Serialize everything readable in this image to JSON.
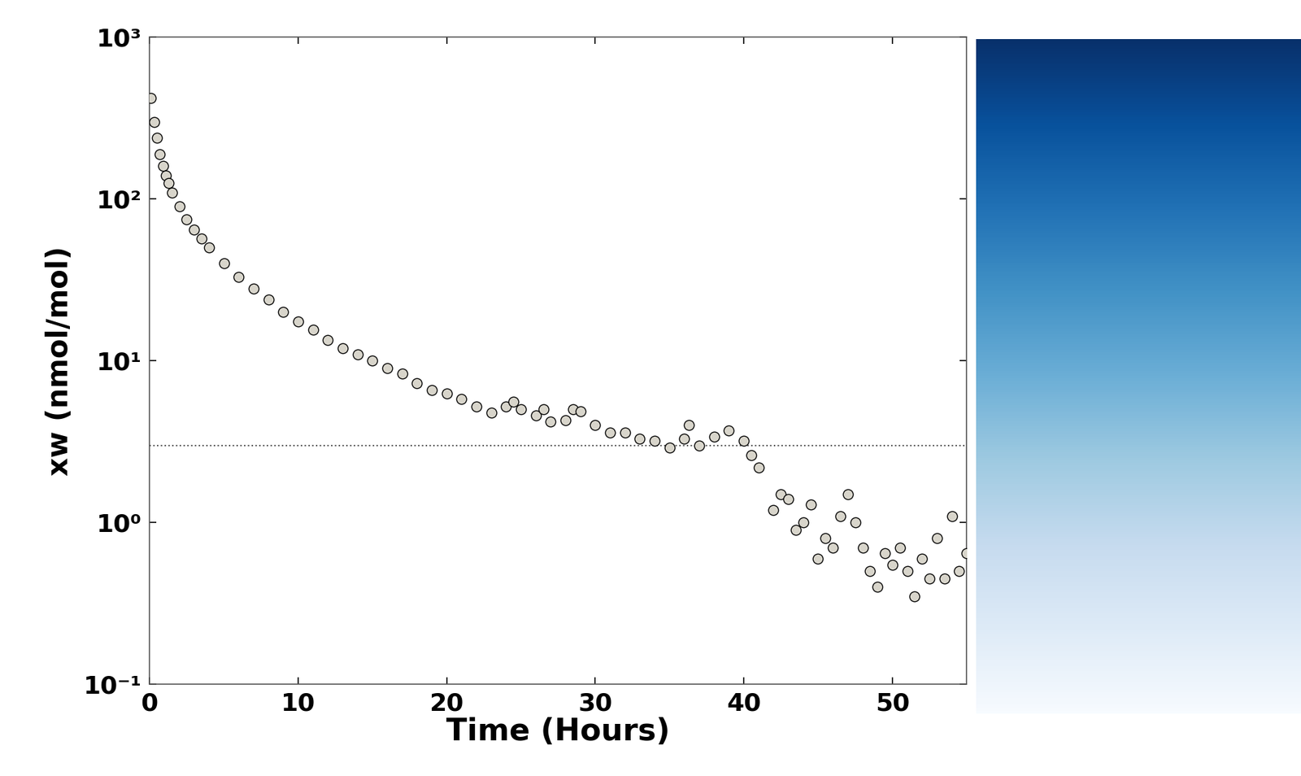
{
  "chart_data": {
    "type": "scatter",
    "x_label": "Time (Hours)",
    "y_label": "xw (nmol/mol)",
    "log": "y",
    "color": "#d8d5cb",
    "marker": "o",
    "threshold": 3,
    "x": [
      0.1,
      0.3,
      0.5,
      0.7,
      0.9,
      1.1,
      1.3,
      1.5,
      2,
      2.5,
      3,
      3.5,
      4,
      5,
      6,
      7,
      8,
      9,
      10,
      11,
      12,
      13,
      14,
      15,
      16,
      17,
      18,
      19,
      20,
      21,
      22,
      23,
      24,
      24.5,
      25,
      26,
      26.5,
      27,
      28,
      28.5,
      29,
      30,
      31,
      32,
      33,
      34,
      35,
      36,
      36.3,
      37,
      38,
      39,
      40,
      40.5,
      41,
      42,
      42.5,
      43,
      43.5,
      44,
      44.5,
      45,
      45.5,
      46,
      46.5,
      47,
      47.5,
      48,
      48.5,
      49,
      49.5,
      50,
      50.5,
      51,
      51.5,
      52,
      52.5,
      53,
      53.5,
      54,
      54.5,
      55
    ],
    "values": [
      420,
      300,
      240,
      190,
      160,
      140,
      125,
      110,
      90,
      75,
      65,
      57,
      50,
      40,
      33,
      28,
      24,
      20,
      17.5,
      15.5,
      13.5,
      12,
      11,
      10,
      9,
      8.3,
      7.3,
      6.6,
      6.3,
      5.8,
      5.2,
      4.8,
      5.2,
      5.6,
      5,
      4.6,
      5,
      4.2,
      4.3,
      5,
      4.9,
      4,
      3.6,
      3.6,
      3.3,
      3.2,
      2.9,
      3.3,
      4,
      3,
      3.4,
      3.7,
      3.2,
      2.6,
      2.2,
      1.2,
      1.5,
      1.4,
      0.9,
      1.0,
      1.3,
      0.6,
      0.8,
      0.7,
      1.1,
      1.5,
      1.0,
      0.7,
      0.5,
      0.4,
      0.65,
      0.55,
      0.7,
      0.5,
      0.35,
      0.6,
      0.45,
      0.8,
      0.45,
      1.1,
      0.5,
      0.65
    ],
    "xlim": [
      0,
      55
    ],
    "xticks": [
      0,
      10,
      20,
      30,
      40,
      50
    ],
    "ylim": [
      0.1,
      1000
    ],
    "yticks": [
      {
        "value": 0.1,
        "label": "10⁻¹"
      },
      {
        "value": 1,
        "label": "10⁰"
      },
      {
        "value": 10,
        "label": "10¹"
      },
      {
        "value": 100,
        "label": "10²"
      },
      {
        "value": 1000,
        "label": "10³"
      }
    ]
  }
}
